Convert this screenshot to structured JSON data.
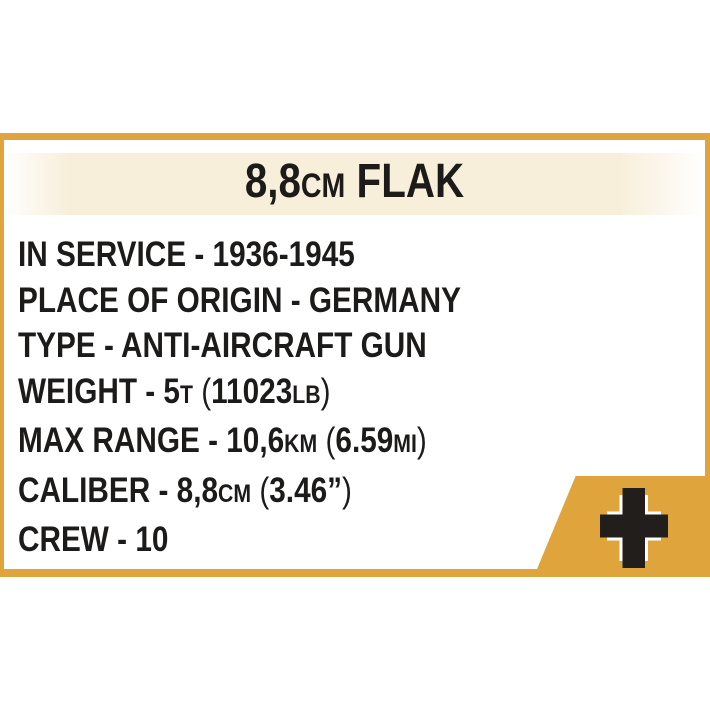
{
  "colors": {
    "accent_yellow": "#dfa53c",
    "title_band_cream": "#f8efdb",
    "text_black": "#1d1b1a",
    "cross_black": "#211e1b",
    "background": "#ffffff"
  },
  "title": {
    "full": "8,8CM FLAK",
    "segments": [
      {
        "text": "8,8"
      },
      {
        "text": "CM",
        "small": true
      },
      {
        "text": " FLAK"
      }
    ]
  },
  "specs": [
    {
      "full": "IN SERVICE - 1936-1945",
      "segments": [
        {
          "text": "IN SERVICE - 1936-1945"
        }
      ]
    },
    {
      "full": "PLACE OF ORIGIN - GERMANY",
      "segments": [
        {
          "text": "PLACE OF ORIGIN - GERMANY"
        }
      ]
    },
    {
      "full": "TYPE - ANTI-AIRCRAFT GUN",
      "segments": [
        {
          "text": "TYPE - ANTI-AIRCRAFT GUN"
        }
      ]
    },
    {
      "full": "WEIGHT - 5T (11023LB)",
      "segments": [
        {
          "text": "WEIGHT - 5"
        },
        {
          "text": "T",
          "small": true
        },
        {
          "text": " (",
          "thin": true
        },
        {
          "text": "11023"
        },
        {
          "text": "LB",
          "small": true
        },
        {
          "text": ")",
          "thin": true
        }
      ]
    },
    {
      "full": "MAX RANGE - 10,6KM (6.59MI)",
      "segments": [
        {
          "text": "MAX RANGE - 10,6"
        },
        {
          "text": "KM",
          "small": true
        },
        {
          "text": " (",
          "thin": true
        },
        {
          "text": "6.59"
        },
        {
          "text": "MI",
          "small": true
        },
        {
          "text": ")",
          "thin": true
        }
      ]
    },
    {
      "full": "CALIBER - 8,8CM (3.46”)",
      "segments": [
        {
          "text": "CALIBER - 8,8"
        },
        {
          "text": "CM",
          "small": true
        },
        {
          "text": " (",
          "thin": true
        },
        {
          "text": "3.46”"
        },
        {
          "text": ")",
          "thin": true
        }
      ]
    },
    {
      "full": "CREW - 10",
      "segments": [
        {
          "text": "CREW - 10"
        }
      ]
    }
  ],
  "icons": {
    "corner": "balkenkreuz-cross-icon"
  }
}
